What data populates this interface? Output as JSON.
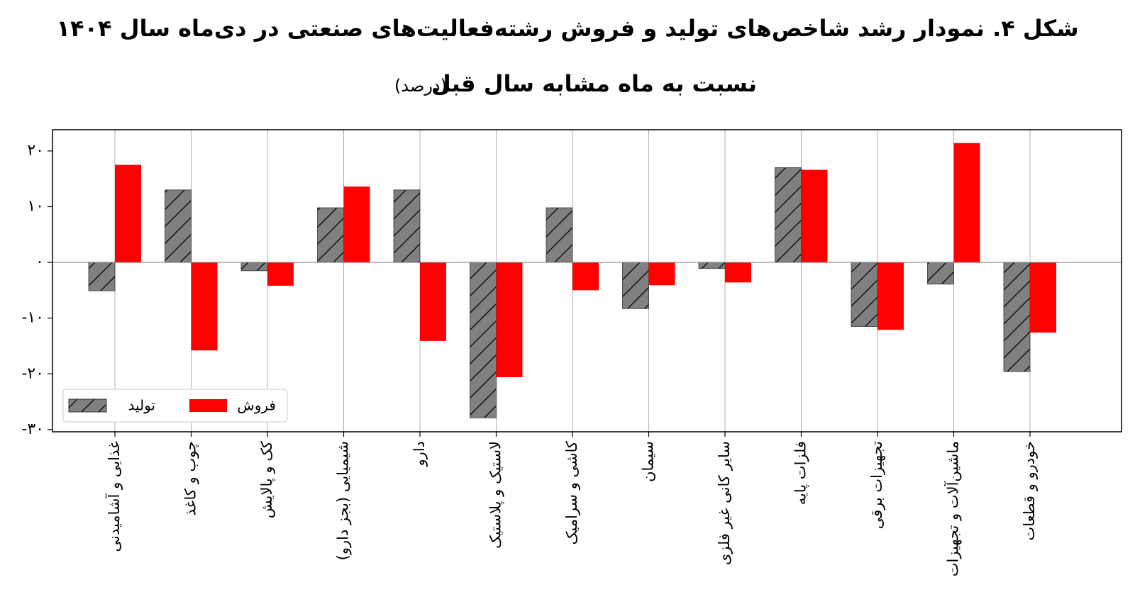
{
  "chart_data": {
    "type": "bar",
    "title": "شکل ۴. نمودار رشد شاخص‌های تولید و فروش رشته‌فعالیت‌های صنعتی در دی‌ماه سال ۱۴۰۴",
    "subtitle": "نسبت به ماه مشابه سال قبل",
    "unit": "(درصد)",
    "categories": [
      "غذایی و آشامیدنی",
      "چوب و کاغذ",
      "کک و پالایش",
      "شیمیایی (بجز دارو)",
      "دارو",
      "لاستیک و پلاستیک",
      "کاشی و سرامیک",
      "سیمان",
      "سایر کانی غیر فلزی",
      "فلزات پایه",
      "تجهیزات برقی",
      "ماشین‌آلات و تجهیزات",
      "خودرو و قطعات"
    ],
    "series": [
      {
        "name": "تولید",
        "color": "#808080",
        "hatch": "/",
        "values": [
          -5.1,
          13,
          -1.5,
          9.8,
          13,
          -27.9,
          9.8,
          -8.3,
          -1.1,
          17,
          -11.5,
          -3.9,
          -19.6
        ]
      },
      {
        "name": "فروش",
        "color": "#ff0000",
        "values": [
          17.5,
          -15.8,
          -4.2,
          13.6,
          -14.1,
          -20.6,
          -5,
          -4.1,
          -3.6,
          16.6,
          -12.1,
          21.4,
          -12.6
        ]
      }
    ],
    "ylim": [
      -30.4,
      23.8
    ],
    "yticks": [
      {
        "value": -30,
        "label": "-۳۰"
      },
      {
        "value": -20,
        "label": "-۲۰"
      },
      {
        "value": -10,
        "label": "-۱۰"
      },
      {
        "value": 0,
        "label": "۰"
      },
      {
        "value": 10,
        "label": "۱۰"
      },
      {
        "value": 20,
        "label": "۲۰"
      }
    ],
    "grid": "x",
    "legend": "lower left"
  }
}
